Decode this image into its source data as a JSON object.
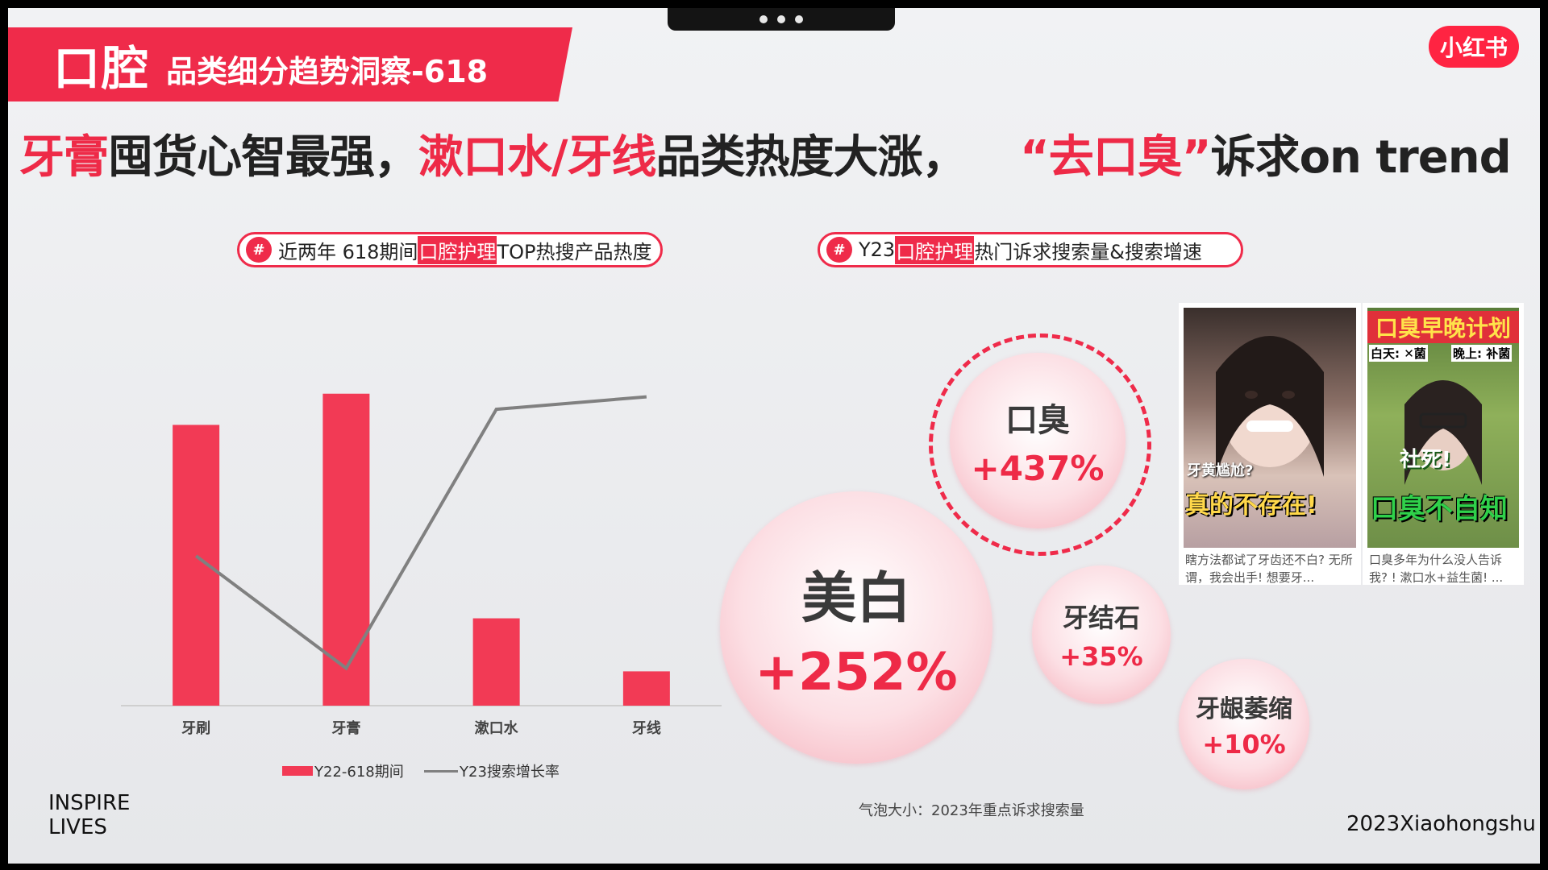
{
  "header": {
    "banner_main": "口腔",
    "banner_sub": "品类细分趋势洞察-618",
    "logo": "小红书"
  },
  "headline": {
    "part1": "牙膏",
    "part2": "囤货心智最强，",
    "part3": "漱口水/牙线",
    "part4": "品类热度大涨，",
    "part5": "“去口臭”",
    "part6": "诉求on trend"
  },
  "left_pill": {
    "pre": "近两年 618期间",
    "highlight": "口腔护理",
    "post": "TOP热搜产品热度"
  },
  "right_pill": {
    "pre": "Y23",
    "highlight": "口腔护理",
    "post": "热门诉求搜索量&搜索增速"
  },
  "chart_data": [
    {
      "type": "bar",
      "categories": [
        "牙刷",
        "牙膏",
        "漱口水",
        "牙线"
      ],
      "series": [
        {
          "name": "Y22-618期间",
          "type": "bar",
          "values": [
            90,
            100,
            28,
            11
          ]
        },
        {
          "name": "Y23搜索增长率",
          "type": "line",
          "values": [
            48,
            12,
            95,
            99
          ]
        }
      ],
      "ylim": [
        0,
        110
      ],
      "grid": false,
      "legend": "bottom",
      "colors": {
        "bar": "#f23a55",
        "line": "#808080"
      }
    },
    {
      "type": "scatter",
      "series": [
        {
          "name": "口臭",
          "growth": "+437%",
          "growth_value": 437,
          "size_rank": 3
        },
        {
          "name": "美白",
          "growth": "+252%",
          "growth_value": 252,
          "size_rank": 1
        },
        {
          "name": "牙结石",
          "growth": "+35%",
          "growth_value": 35,
          "size_rank": 2
        },
        {
          "name": "牙龈萎缩",
          "growth": "+10%",
          "growth_value": 10,
          "size_rank": 4
        }
      ],
      "note": "气泡大小：2023年重点诉求搜索量"
    }
  ],
  "thumbnails": [
    {
      "overlay_small": "牙黄尴尬?",
      "overlay_big": "真的不存在!",
      "caption": "瞎方法都试了牙齿还不白? 无所谓，我会出手! 想要牙..."
    },
    {
      "title": "口臭早晚计划",
      "subtitle_left": "白天: ✕菌",
      "subtitle_right": "晚上: 补菌",
      "overlay_small": "社死!",
      "overlay_big": "口臭不自知",
      "caption": "口臭多年为什么没人告诉我? ! 漱口水+益生菌! ..."
    }
  ],
  "footer": {
    "left_line1": "INSPIRE",
    "left_line2": "LIVES",
    "right": "2023Xiaohongshu"
  }
}
